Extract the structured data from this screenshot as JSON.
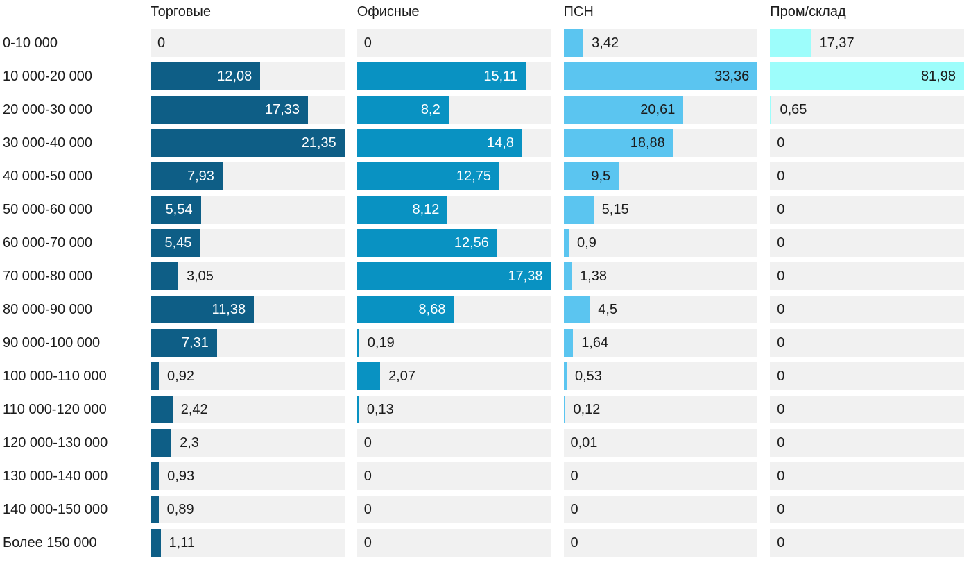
{
  "chart_data": {
    "type": "bar",
    "orientation": "horizontal",
    "normalization": "per-series-max",
    "decimal_separator": ",",
    "track_color": "#f1f1f1",
    "grid": false,
    "legend_position": "column-headers-top",
    "categories": [
      "0-10 000",
      "10 000-20 000",
      "20 000-30 000",
      "30 000-40 000",
      "40 000-50 000",
      "50 000-60 000",
      "60 000-70 000",
      "70 000-80 000",
      "80 000-90 000",
      "90 000-100 000",
      "100 000-110 000",
      "110 000-120 000",
      "120 000-130 000",
      "130 000-140 000",
      "140 000-150 000",
      "Более 150 000"
    ],
    "series": [
      {
        "name": "Торговые",
        "color": "#0e5e86",
        "label_color_inside": "#ffffff",
        "values": [
          0,
          12.08,
          17.33,
          21.35,
          7.93,
          5.54,
          5.45,
          3.05,
          11.38,
          7.31,
          0.92,
          2.42,
          2.3,
          0.93,
          0.89,
          1.11
        ]
      },
      {
        "name": "Офисные",
        "color": "#0992c2",
        "label_color_inside": "#ffffff",
        "values": [
          0,
          15.11,
          8.2,
          14.8,
          12.75,
          8.12,
          12.56,
          17.38,
          8.68,
          0.19,
          2.07,
          0.13,
          0,
          0,
          0,
          0
        ]
      },
      {
        "name": "ПСН",
        "color": "#5bc5f0",
        "label_color_inside": "#1c1c1c",
        "values": [
          3.42,
          33.36,
          20.61,
          18.88,
          9.5,
          5.15,
          0.9,
          1.38,
          4.5,
          1.64,
          0.53,
          0.12,
          0.01,
          0,
          0,
          0
        ]
      },
      {
        "name": "Пром/склад",
        "color": "#9dfdfb",
        "label_color_inside": "#1c1c1c",
        "values": [
          17.37,
          81.98,
          0.65,
          0,
          0,
          0,
          0,
          0,
          0,
          0,
          0,
          0,
          0,
          0,
          0,
          0
        ]
      }
    ]
  }
}
